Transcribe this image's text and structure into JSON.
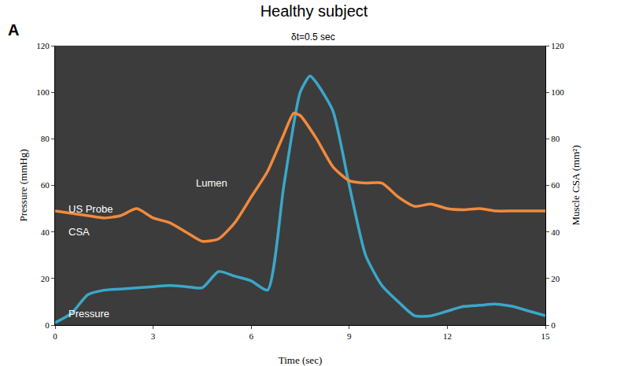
{
  "chart_data": {
    "type": "line",
    "title": "Healthy subject",
    "panel_label": "A",
    "x_label": "Time (sec)",
    "y_label": "Pressure (mmHg)",
    "y2_label": "Muscle CSA (mm²)",
    "annotations": [
      "δt=0.5 sec",
      "Lumen",
      "US Probe",
      "CSA",
      "Pressure"
    ],
    "xlim": [
      0,
      15
    ],
    "xticks": [
      0,
      3,
      6,
      9,
      12,
      15
    ],
    "ylim": [
      0,
      120
    ],
    "yticks": [
      0,
      20,
      40,
      60,
      80,
      100,
      120
    ],
    "y2lim": [
      0,
      120
    ],
    "y2ticks": [
      0,
      20,
      40,
      60,
      80,
      100,
      120
    ],
    "grid": false,
    "series": [
      {
        "color": "#f28a3c",
        "axis": "y2",
        "x": [
          0,
          0.5,
          1,
          1.5,
          2,
          2.5,
          3,
          3.5,
          4,
          4.5,
          5,
          5.5,
          6,
          6.5,
          7,
          7.3,
          7.5,
          8,
          8.5,
          9,
          9.5,
          10,
          10.5,
          11,
          11.5,
          12,
          12.5,
          13,
          13.5,
          14,
          15
        ],
        "values": [
          49,
          48,
          47,
          46,
          47,
          50,
          46,
          44,
          40,
          36,
          37,
          44,
          55,
          66,
          82,
          91,
          90,
          80,
          68,
          62,
          61,
          61,
          55,
          51,
          52,
          50,
          49.5,
          50,
          49,
          49,
          49
        ]
      },
      {
        "color": "#3ba7c9",
        "axis": "y",
        "x": [
          0,
          0.5,
          1,
          1.5,
          2,
          2.5,
          3,
          3.5,
          4,
          4.5,
          5,
          5.5,
          6,
          6.5,
          7,
          7.5,
          7.8,
          8,
          8.5,
          9,
          9.5,
          10,
          10.5,
          11,
          11.5,
          12,
          12.5,
          13,
          13.5,
          14,
          14.5,
          15
        ],
        "values": [
          1,
          5,
          13,
          15,
          15.5,
          16,
          16.5,
          17,
          16.5,
          16,
          23,
          21,
          19,
          15,
          60,
          100,
          107,
          104,
          92,
          60,
          30,
          17,
          10,
          4,
          4,
          6,
          8,
          8.5,
          9,
          8,
          6,
          4
        ]
      }
    ]
  }
}
